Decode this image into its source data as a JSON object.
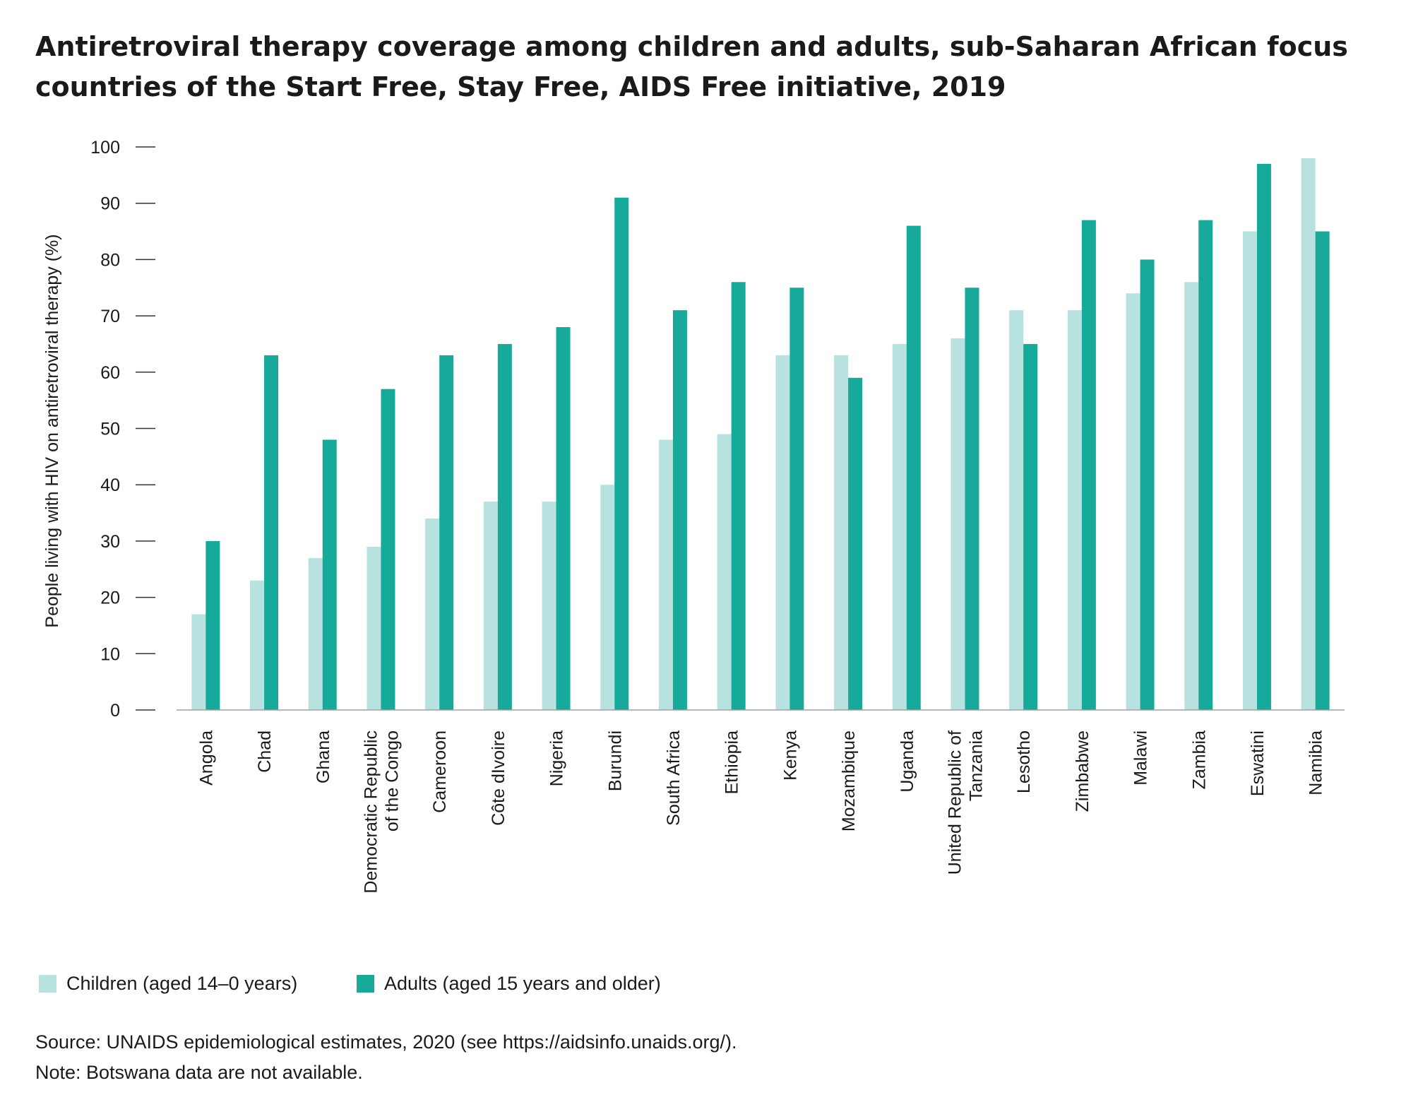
{
  "chart_data": {
    "type": "bar",
    "title": "Antiretroviral therapy coverage among children and adults, sub-Saharan African focus countries of the Start Free, Stay Free, AIDS Free initiative, 2019",
    "ylabel": "People living with HIV on antiretroviral therapy (%)",
    "xlabel": "",
    "ylim": [
      0,
      100
    ],
    "yticks": [
      0,
      10,
      20,
      30,
      40,
      50,
      60,
      70,
      80,
      90,
      100
    ],
    "categories": [
      [
        "Angola"
      ],
      [
        "Chad"
      ],
      [
        "Ghana"
      ],
      [
        "Democratic Republic",
        "of the Congo"
      ],
      [
        "Cameroon"
      ],
      [
        "Côte dIvoire"
      ],
      [
        "Nigeria"
      ],
      [
        "Burundi"
      ],
      [
        "South Africa"
      ],
      [
        "Ethiopia"
      ],
      [
        "Kenya"
      ],
      [
        "Mozambique"
      ],
      [
        "Uganda"
      ],
      [
        "United Republic of",
        "Tanzania"
      ],
      [
        "Lesotho"
      ],
      [
        "Zimbabwe"
      ],
      [
        "Malawi"
      ],
      [
        "Zambia"
      ],
      [
        "Eswatini"
      ],
      [
        "Namibia"
      ]
    ],
    "series": [
      {
        "name": "Children (aged 14–0 years)",
        "color": "#b8e2df",
        "values": [
          17,
          23,
          27,
          29,
          34,
          37,
          37,
          40,
          48,
          49,
          63,
          63,
          65,
          66,
          71,
          71,
          74,
          76,
          85,
          98
        ]
      },
      {
        "name": "Adults (aged 15 years and older)",
        "color": "#17a99a",
        "values": [
          30,
          63,
          48,
          57,
          63,
          65,
          68,
          91,
          71,
          76,
          75,
          59,
          86,
          75,
          65,
          87,
          80,
          87,
          97,
          85
        ]
      }
    ],
    "grid": false,
    "legend_position": "bottom-left"
  },
  "footnotes": {
    "source": "Source: UNAIDS epidemiological estimates, 2020 (see https://aidsinfo.unaids.org/).",
    "note": "Note: Botswana data are not available."
  }
}
